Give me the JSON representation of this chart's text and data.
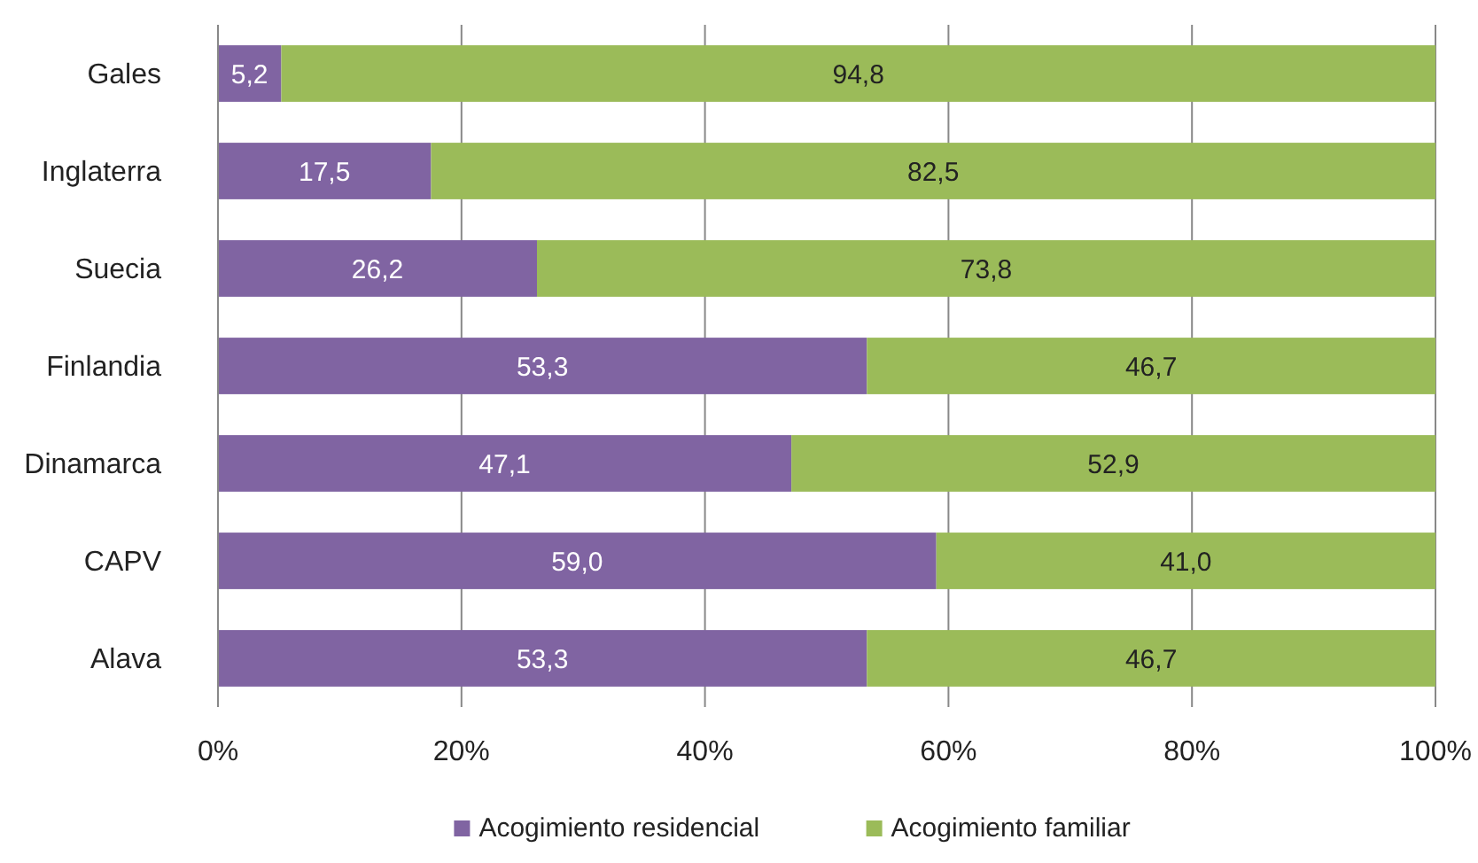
{
  "chart_data": {
    "type": "bar",
    "orientation": "horizontal",
    "stacked": true,
    "categories": [
      "Gales",
      "Inglaterra",
      "Suecia",
      "Finlandia",
      "Dinamarca",
      "CAPV",
      "Alava"
    ],
    "series": [
      {
        "name": "Acogimiento residencial",
        "color": "#8064a2",
        "values": [
          5.2,
          17.5,
          26.2,
          53.3,
          47.1,
          59.0,
          53.3
        ],
        "value_labels": [
          "5,2",
          "17,5",
          "26,2",
          "53,3",
          "47,1",
          "59,0",
          "53,3"
        ]
      },
      {
        "name": "Acogimiento familiar",
        "color": "#9bbb59",
        "values": [
          94.8,
          82.5,
          73.8,
          46.7,
          52.9,
          41.0,
          46.7
        ],
        "value_labels": [
          "94,8",
          "82,5",
          "73,8",
          "46,7",
          "52,9",
          "41,0",
          "46,7"
        ]
      }
    ],
    "xlim": [
      0,
      100
    ],
    "xticks": [
      {
        "value": 0,
        "label": "0%"
      },
      {
        "value": 20,
        "label": "20%"
      },
      {
        "value": 40,
        "label": "40%"
      },
      {
        "value": 60,
        "label": "60%"
      },
      {
        "value": 80,
        "label": "80%"
      },
      {
        "value": 100,
        "label": "100%"
      }
    ],
    "grid": "x",
    "legend": "bottom"
  }
}
